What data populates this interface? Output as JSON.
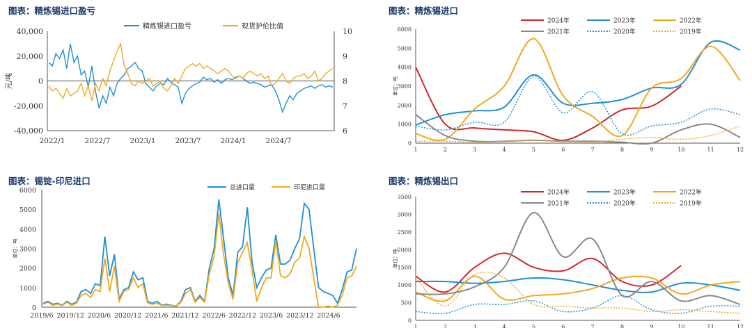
{
  "chart_data": [
    {
      "id": "c1",
      "type": "line",
      "title": "图表：精炼锡进口盈亏",
      "ylabel_left": "元/吨",
      "ylim_left": [
        -40000,
        40000
      ],
      "yticks_left": [
        "40,000",
        "20,000",
        "0",
        "-20,000",
        "-40,000"
      ],
      "ylim_right": [
        6,
        10
      ],
      "yticks_right": [
        "10",
        "9",
        "8",
        "7",
        "6"
      ],
      "xticks": [
        "2022/1",
        "2022/7",
        "2023/1",
        "2023/7",
        "2024/1",
        "2024/7"
      ],
      "series": [
        {
          "name": "精炼锡进口盈亏",
          "axis": "left",
          "color": "#1f8fd6",
          "values": [
            15000,
            12000,
            22000,
            18000,
            25000,
            10000,
            30000,
            15000,
            20000,
            5000,
            8000,
            -5000,
            12000,
            -8000,
            -22000,
            -12000,
            -18000,
            -5000,
            -12000,
            -2000,
            2000,
            5000,
            10000,
            12000,
            15000,
            10000,
            8000,
            -2000,
            -5000,
            -8000,
            -4000,
            -2000,
            -3000,
            2000,
            -1000,
            -3000,
            -5000,
            -18000,
            -10000,
            -6000,
            -4000,
            -2000,
            -1000,
            3000,
            1000,
            2000,
            -1000,
            1000,
            -2000,
            1000,
            2000,
            1000,
            3000,
            4000,
            2000,
            0,
            -2000,
            -1000,
            -2000,
            -3000,
            -5000,
            -4000,
            -3000,
            -8000,
            -15000,
            -25000,
            -18000,
            -12000,
            -15000,
            -10000,
            -8000,
            -6000,
            -5000,
            -4000,
            -6000,
            -4000,
            -3000,
            -5000,
            -4000,
            -5000
          ]
        },
        {
          "name": "现货护伦比值",
          "axis": "right",
          "color": "#f2a81d",
          "values": [
            7.8,
            7.6,
            7.7,
            7.5,
            7.3,
            7.7,
            7.4,
            7.5,
            7.6,
            7.9,
            7.4,
            7.8,
            7.2,
            7.9,
            7.6,
            8.1,
            7.8,
            8.4,
            8.8,
            9.2,
            9.5,
            8.6,
            8.3,
            7.9,
            7.8,
            8.0,
            7.9,
            8.0,
            8.1,
            7.8,
            7.9,
            8.0,
            7.7,
            7.6,
            7.8,
            8.1,
            7.9,
            8.2,
            8.5,
            8.6,
            8.7,
            8.6,
            8.7,
            8.5,
            8.6,
            8.5,
            8.4,
            8.3,
            8.4,
            8.5,
            8.4,
            8.2,
            8.1,
            8.2,
            8.1,
            8.3,
            8.4,
            8.3,
            8.2,
            8.3,
            8.1,
            8.2,
            7.8,
            7.9,
            8.1,
            8.3,
            8.0,
            7.9,
            8.1,
            8.2,
            8.2,
            8.3,
            8.1,
            8.2,
            8.4,
            8.0,
            8.1,
            8.3,
            8.4,
            8.5
          ]
        }
      ]
    },
    {
      "id": "c2",
      "type": "line",
      "title": "图表：精炼锡进口",
      "ylabel": "单位：吨",
      "ylim": [
        0,
        6000
      ],
      "yticks": [
        "6000",
        "5000",
        "4000",
        "3000",
        "2000",
        "1000",
        "0"
      ],
      "categories": [
        "1",
        "2",
        "3",
        "4",
        "5",
        "6",
        "7",
        "8",
        "9",
        "10",
        "11",
        "12"
      ],
      "series": [
        {
          "name": "2024年",
          "color": "#d0262d",
          "dash": "solid",
          "values": [
            4000,
            1000,
            800,
            700,
            600,
            150,
            800,
            1750,
            1950,
            3000,
            null,
            null
          ]
        },
        {
          "name": "2023年",
          "color": "#1f8fd6",
          "dash": "solid",
          "values": [
            950,
            1500,
            1700,
            1900,
            3600,
            2100,
            2100,
            2300,
            2900,
            3100,
            5300,
            4900
          ]
        },
        {
          "name": "2022年",
          "color": "#f2a81d",
          "dash": "solid",
          "values": [
            500,
            200,
            1800,
            3000,
            5500,
            2500,
            1400,
            400,
            2900,
            3400,
            5100,
            3300
          ]
        },
        {
          "name": "2021年",
          "color": "#888888",
          "dash": "solid",
          "values": [
            1500,
            400,
            100,
            100,
            150,
            100,
            100,
            50,
            0,
            700,
            1000,
            300
          ]
        },
        {
          "name": "2020年",
          "color": "#1f8fd6",
          "dash": "dotted",
          "values": [
            900,
            700,
            1100,
            1100,
            3500,
            1600,
            2700,
            500,
            900,
            1100,
            1800,
            1500
          ]
        },
        {
          "name": "2019年",
          "color": "#f2a81d",
          "dash": "dotted",
          "values": [
            100,
            100,
            50,
            100,
            150,
            100,
            50,
            200,
            300,
            200,
            400,
            900
          ]
        }
      ]
    },
    {
      "id": "c3",
      "type": "line",
      "title": "图表：锡锭-印尼进口",
      "ylabel": "单位：吨",
      "ylim": [
        0,
        6000
      ],
      "yticks": [
        "6000",
        "5000",
        "4000",
        "3000",
        "2000",
        "1000",
        "0"
      ],
      "xticks": [
        "2019/6",
        "2019/12",
        "2020/6",
        "2020/12",
        "2021/6",
        "2021/12",
        "2022/6",
        "2022/12",
        "2023/6",
        "2023/12",
        "2024/6"
      ],
      "series": [
        {
          "name": "总进口量",
          "color": "#1f8fd6",
          "values": [
            200,
            300,
            150,
            200,
            100,
            300,
            150,
            250,
            800,
            900,
            700,
            1200,
            1100,
            3600,
            1600,
            2700,
            400,
            900,
            1000,
            1800,
            1400,
            1500,
            300,
            200,
            300,
            100,
            150,
            100,
            50,
            300,
            900,
            1000,
            300,
            600,
            300,
            2000,
            3000,
            5500,
            3500,
            1500,
            600,
            2800,
            3100,
            5100,
            2300,
            1000,
            1500,
            1900,
            2000,
            3700,
            2200,
            2200,
            2400,
            3000,
            3500,
            5300,
            5000,
            3000,
            1000,
            800,
            700,
            600,
            200,
            900,
            1800,
            1900,
            3000
          ]
        },
        {
          "name": "印尼进口量",
          "color": "#f2a81d",
          "values": [
            150,
            250,
            100,
            150,
            80,
            250,
            100,
            200,
            600,
            700,
            500,
            900,
            800,
            2500,
            800,
            2100,
            300,
            800,
            900,
            1500,
            1000,
            1200,
            200,
            150,
            200,
            80,
            100,
            80,
            40,
            250,
            700,
            900,
            250,
            500,
            250,
            1700,
            2600,
            4800,
            2700,
            1200,
            400,
            2300,
            2800,
            3300,
            1900,
            300,
            1000,
            1500,
            1500,
            3400,
            1600,
            1500,
            1700,
            2300,
            2500,
            3600,
            3000,
            1500,
            0,
            0,
            50,
            0,
            100,
            600,
            1500,
            1600,
            2100
          ]
        }
      ]
    },
    {
      "id": "c4",
      "type": "line",
      "title": "图表：精炼锡出口",
      "ylabel": "单位：吨",
      "ylim": [
        0,
        3500
      ],
      "yticks": [
        "3500",
        "3000",
        "2500",
        "2000",
        "1500",
        "1000",
        "500",
        "0"
      ],
      "categories": [
        "1",
        "2",
        "3",
        "4",
        "5",
        "6",
        "7",
        "8",
        "9",
        "10",
        "11",
        "12"
      ],
      "series": [
        {
          "name": "2024年",
          "color": "#d0262d",
          "dash": "solid",
          "values": [
            1250,
            800,
            1500,
            1900,
            1500,
            1400,
            1750,
            1100,
            1000,
            1550,
            null,
            null
          ]
        },
        {
          "name": "2023年",
          "color": "#1f8fd6",
          "dash": "solid",
          "values": [
            1100,
            1100,
            1050,
            1100,
            1200,
            1150,
            1000,
            850,
            800,
            1050,
            1000,
            850
          ]
        },
        {
          "name": "2022年",
          "color": "#f2a81d",
          "dash": "solid",
          "values": [
            800,
            550,
            1250,
            600,
            700,
            750,
            900,
            1200,
            1200,
            750,
            1000,
            1100
          ]
        },
        {
          "name": "2021年",
          "color": "#888888",
          "dash": "solid",
          "values": [
            750,
            750,
            950,
            1500,
            3050,
            1800,
            2300,
            700,
            1100,
            550,
            700,
            450
          ]
        },
        {
          "name": "2020年",
          "color": "#1f8fd6",
          "dash": "dotted",
          "values": [
            250,
            200,
            450,
            450,
            550,
            250,
            350,
            700,
            300,
            200,
            400,
            400
          ]
        },
        {
          "name": "2019年",
          "color": "#f2a81d",
          "dash": "dotted",
          "values": [
            1200,
            400,
            1300,
            1200,
            450,
            400,
            350,
            350,
            250,
            300,
            250,
            200
          ]
        }
      ]
    }
  ]
}
